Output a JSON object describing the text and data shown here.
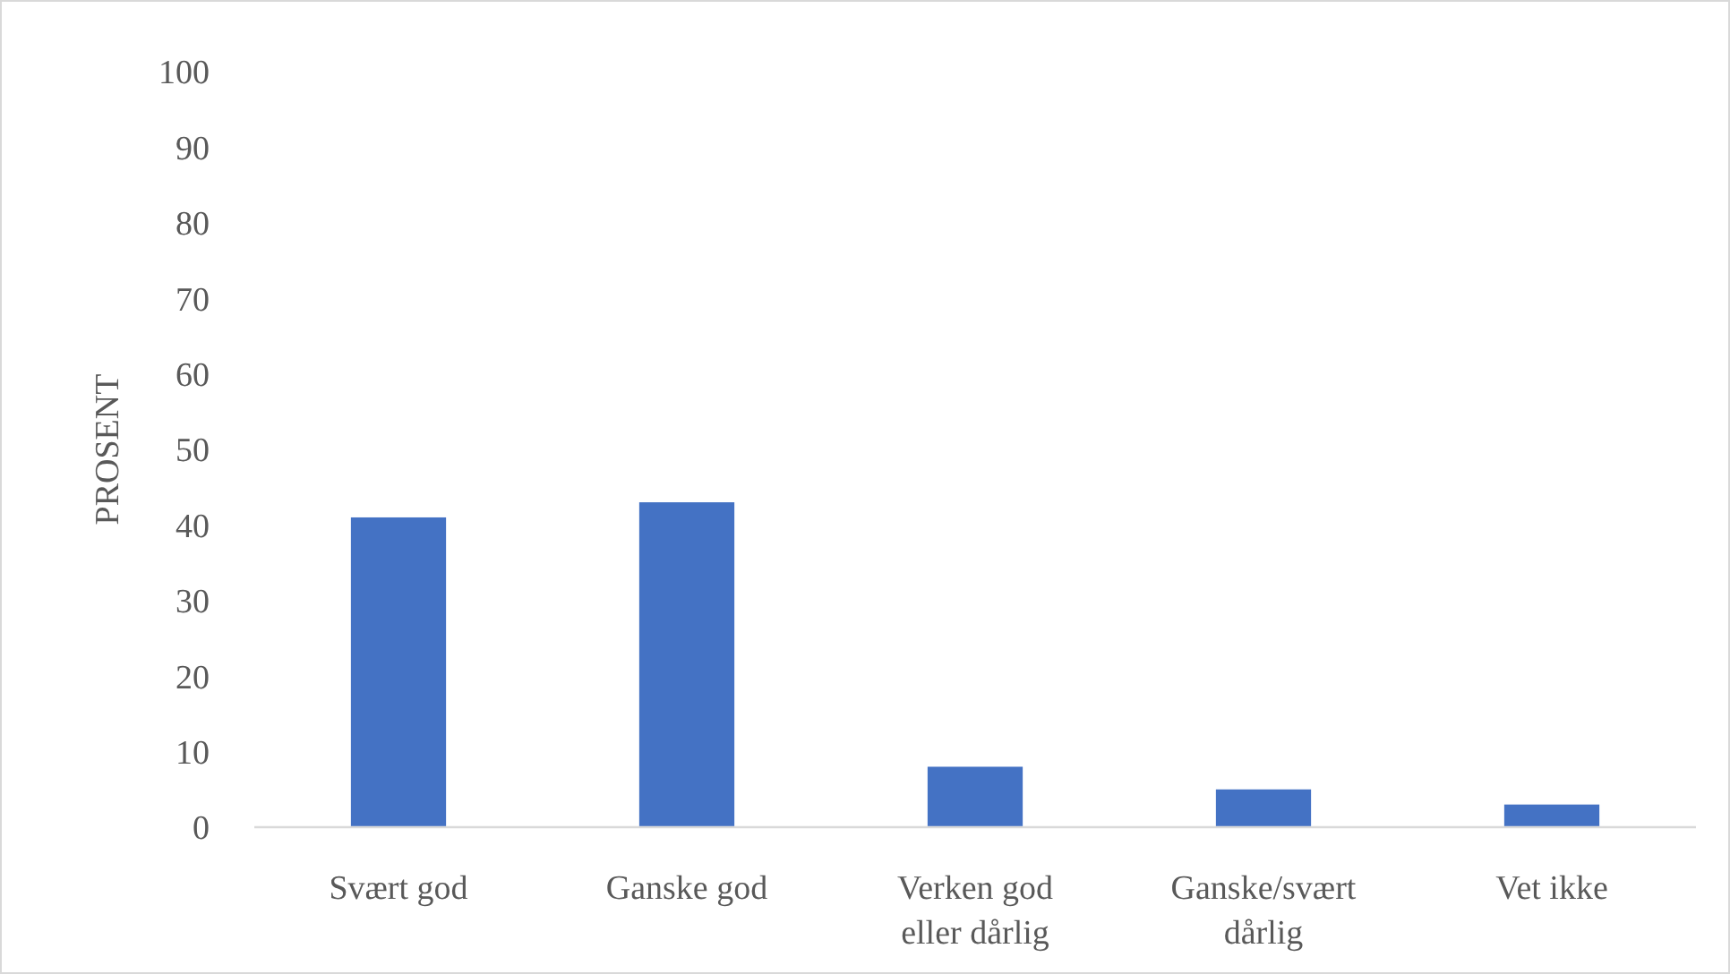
{
  "chart_data": {
    "type": "bar",
    "categories": [
      "Svært god",
      "Ganske god",
      "Verken god eller dårlig",
      "Ganske/svært dårlig",
      "Vet ikke"
    ],
    "values": [
      41,
      43,
      8,
      5,
      3
    ],
    "color": "#4472c4",
    "ylabel": "PROSENT",
    "ylim": [
      0,
      100
    ],
    "yticks": [
      0,
      10,
      20,
      30,
      40,
      50,
      60,
      70,
      80,
      90,
      100
    ],
    "grid": false
  }
}
